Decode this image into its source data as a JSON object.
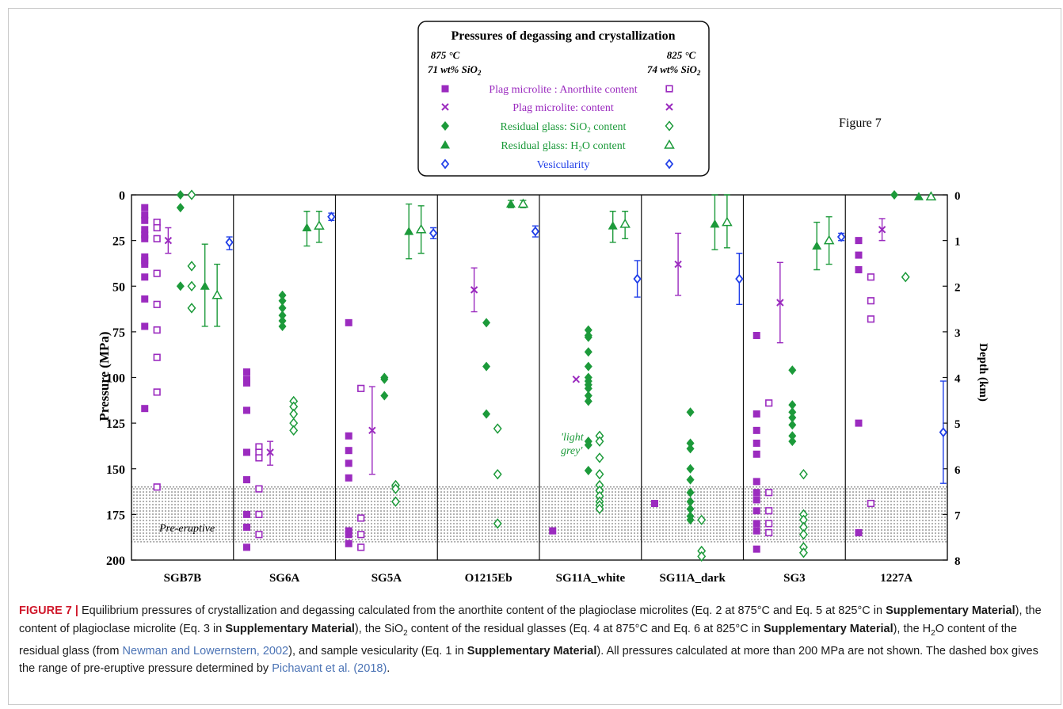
{
  "colors": {
    "plag": "#9b2bbf",
    "glass": "#1c9a3a",
    "vesicularity": "#1f3ee8"
  },
  "legend": {
    "title": "Pressures of degassing and crystallization",
    "left_temp": "875 °C",
    "left_sio2": "71 wt% SiO",
    "right_temp": "825 °C",
    "right_sio2": "74 wt% SiO",
    "entries": [
      "Plag microlite : Anorthite content",
      "Plag microlite: content",
      "Residual glass: SiO",
      "Residual glass: H",
      "Vesicularity"
    ],
    "entry_suffixes": [
      "",
      "",
      " content",
      "O content",
      ""
    ]
  },
  "figure_label": "Figure 7",
  "annotations": {
    "pre_eruptive": "Pre-eruptive",
    "light_grey_1": "'light",
    "light_grey_2": "grey'"
  },
  "chart_data": {
    "type": "scatter",
    "ylabel": "Pressure (MPa)",
    "y2label": "Depth (km)",
    "ylim": [
      0,
      200
    ],
    "y_inverted": true,
    "yticks": [
      0,
      25,
      50,
      75,
      100,
      125,
      150,
      175,
      200
    ],
    "y2ticks": [
      0,
      1,
      2,
      3,
      4,
      5,
      6,
      7,
      8
    ],
    "pre_eruptive_range": [
      160,
      190
    ],
    "panels": [
      {
        "name": "SGB7B",
        "anorthite_875": [
          7,
          11,
          14,
          19,
          22,
          24,
          34,
          36,
          38,
          45,
          57,
          72,
          117
        ],
        "anorthite_825": [
          15,
          18,
          24,
          43,
          60,
          74,
          89,
          108,
          160
        ],
        "plag_content": {
          "p": 25,
          "lo": 18,
          "hi": 32
        },
        "sio2_875": [
          0,
          7,
          50
        ],
        "sio2_825": [
          0,
          39,
          50,
          62
        ],
        "h2o_875": {
          "p": 50,
          "lo": 27,
          "hi": 72
        },
        "h2o_825": {
          "p": 55,
          "lo": 38,
          "hi": 72
        },
        "vesicularity": {
          "p": 26,
          "lo": 23,
          "hi": 30
        }
      },
      {
        "name": "SG6A",
        "anorthite_875": [
          97,
          101,
          103,
          118,
          141,
          156,
          175,
          182,
          193
        ],
        "anorthite_825": [
          138,
          141,
          144,
          161,
          175,
          186
        ],
        "plag_content": {
          "p": 141,
          "lo": 135,
          "hi": 148
        },
        "sio2_875": [
          55,
          58,
          62,
          66,
          69,
          72
        ],
        "sio2_825": [
          113,
          116,
          120,
          125,
          129
        ],
        "h2o_875": {
          "p": 18,
          "lo": 9,
          "hi": 28
        },
        "h2o_825": {
          "p": 17,
          "lo": 9,
          "hi": 26
        },
        "vesicularity": {
          "p": 12,
          "lo": 10,
          "hi": 14
        }
      },
      {
        "name": "SG5A",
        "anorthite_875": [
          70,
          132,
          140,
          147,
          155,
          184,
          186,
          191
        ],
        "anorthite_825": [
          106,
          177,
          186,
          193
        ],
        "plag_content": {
          "p": 129,
          "lo": 105,
          "hi": 153
        },
        "sio2_875": [
          100,
          101,
          110
        ],
        "sio2_825": [
          159,
          161,
          168
        ],
        "h2o_875": {
          "p": 20,
          "lo": 5,
          "hi": 35
        },
        "h2o_825": {
          "p": 19,
          "lo": 6,
          "hi": 32
        },
        "vesicularity": {
          "p": 21,
          "lo": 18,
          "hi": 24
        }
      },
      {
        "name": "O1215Eb",
        "anorthite_875": [],
        "anorthite_825": [],
        "plag_content": {
          "p": 52,
          "lo": 40,
          "hi": 64
        },
        "sio2_875": [
          70,
          94,
          120
        ],
        "sio2_825": [
          128,
          153,
          180
        ],
        "h2o_875": {
          "p": 5,
          "lo": 3,
          "hi": 7
        },
        "h2o_825": {
          "p": 5,
          "lo": 3,
          "hi": 7
        },
        "vesicularity": {
          "p": 20,
          "lo": 17,
          "hi": 23
        }
      },
      {
        "name": "SG11A_white",
        "anorthite_875": [
          184
        ],
        "anorthite_825": [],
        "plag_content": {
          "p": 101,
          "lo": 101,
          "hi": 101
        },
        "sio2_875": [
          74,
          77,
          78,
          86,
          94,
          100,
          102,
          104,
          106,
          110,
          113,
          135,
          137,
          151
        ],
        "sio2_825": [
          132,
          135,
          144,
          153,
          159,
          162,
          165,
          168,
          170,
          172
        ],
        "h2o_875": {
          "p": 17,
          "lo": 9,
          "hi": 26
        },
        "h2o_825": {
          "p": 16,
          "lo": 9,
          "hi": 24
        },
        "vesicularity": {
          "p": 46,
          "lo": 36,
          "hi": 56
        }
      },
      {
        "name": "SG11A_dark",
        "anorthite_875": [
          169
        ],
        "anorthite_825": [],
        "plag_content": {
          "p": 38,
          "lo": 21,
          "hi": 55
        },
        "sio2_875": [
          119,
          136,
          139,
          150,
          156,
          163,
          168,
          172,
          176,
          178
        ],
        "sio2_825": [
          178,
          195,
          198
        ],
        "h2o_875": {
          "p": 16,
          "lo": 0,
          "hi": 30
        },
        "h2o_825": {
          "p": 15,
          "lo": 0,
          "hi": 29
        },
        "vesicularity": {
          "p": 46,
          "lo": 32,
          "hi": 60
        }
      },
      {
        "name": "SG3",
        "anorthite_875": [
          77,
          120,
          129,
          136,
          142,
          157,
          163,
          167,
          173,
          180,
          184,
          194
        ],
        "anorthite_825": [
          114,
          163,
          173,
          180,
          185
        ],
        "plag_content": {
          "p": 59,
          "lo": 37,
          "hi": 81
        },
        "sio2_875": [
          96,
          115,
          119,
          122,
          126,
          132,
          135
        ],
        "sio2_825": [
          153,
          175,
          178,
          182,
          186,
          193,
          196
        ],
        "h2o_875": {
          "p": 28,
          "lo": 15,
          "hi": 41
        },
        "h2o_825": {
          "p": 25,
          "lo": 12,
          "hi": 38
        },
        "vesicularity": {
          "p": 23,
          "lo": 21,
          "hi": 25
        }
      },
      {
        "name": "1227A",
        "anorthite_875": [
          25,
          33,
          41,
          125,
          185
        ],
        "anorthite_825": [
          45,
          58,
          68,
          169
        ],
        "plag_content": {
          "p": 19,
          "lo": 13,
          "hi": 25
        },
        "sio2_875": [
          0
        ],
        "sio2_825": [
          45
        ],
        "h2o_875": {
          "p": 1,
          "lo": 1,
          "hi": 1
        },
        "h2o_825": {
          "p": 1,
          "lo": 1,
          "hi": 1
        },
        "vesicularity": {
          "p": 130,
          "lo": 102,
          "hi": 158
        }
      }
    ]
  },
  "caption": {
    "lead": "FIGURE 7 |",
    "t1": " Equilibrium pressures of crystallization and degassing calculated from the anorthite content of the plagioclase microlites (Eq. 2 at 875°C and Eq. 5 at 825°C in ",
    "sm": "Supplementary Material",
    "t2": "), the content of plagioclase microlite (Eq. 3 in ",
    "t3": "), the SiO",
    "sub2": "2",
    "t4": " content of the residual glasses (Eq. 4 at 875°C and Eq. 6 at 825°C in ",
    "t5": "), the H",
    "t6": "O content of the residual glass (from ",
    "cite1": "Newman and Lowernstern, 2002",
    "t7": "), and sample vesicularity (Eq. 1 in ",
    "t8": "). All pressures calculated at more than 200 MPa are not shown. The dashed box gives the range of pre-eruptive pressure determined by ",
    "cite2": "Pichavant et al. (2018)",
    "t9": "."
  }
}
